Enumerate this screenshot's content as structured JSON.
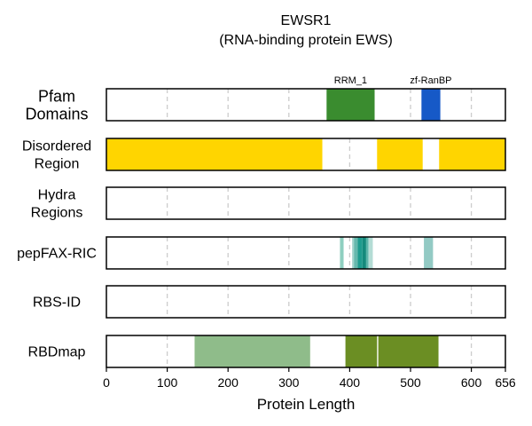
{
  "chart_data": {
    "type": "track",
    "title": "EWSR1",
    "subtitle": "(RNA-binding protein EWS)",
    "xlabel": "Protein Length",
    "xlim": [
      0,
      656
    ],
    "xticks": [
      0,
      100,
      200,
      300,
      400,
      500,
      600,
      656
    ],
    "grid_x": [
      100,
      200,
      300,
      400,
      500,
      600
    ],
    "grid": true,
    "tracks": [
      {
        "label_lines": [
          "Pfam",
          "Domains"
        ],
        "segments": [
          {
            "start": 362,
            "end": 441,
            "color": "#3a8c2f",
            "name": "RRM_1"
          },
          {
            "start": 518,
            "end": 549,
            "color": "#1659c7",
            "name": "zf-RanBP"
          }
        ]
      },
      {
        "label_lines": [
          "Disordered",
          "Region"
        ],
        "segments": [
          {
            "start": 0,
            "end": 355,
            "color": "#ffd500"
          },
          {
            "start": 445,
            "end": 520,
            "color": "#ffd500"
          },
          {
            "start": 547,
            "end": 656,
            "color": "#ffd500"
          }
        ]
      },
      {
        "label_lines": [
          "Hydra",
          "Regions"
        ],
        "segments": []
      },
      {
        "label_lines": [
          "pepFAX-RIC"
        ],
        "segments": [
          {
            "start": 384,
            "end": 390,
            "color": "#8fcfc0"
          },
          {
            "start": 404,
            "end": 407,
            "color": "#a0d3cb"
          },
          {
            "start": 407,
            "end": 413,
            "color": "#66b8ad"
          },
          {
            "start": 413,
            "end": 421,
            "color": "#1f9b8e"
          },
          {
            "start": 421,
            "end": 427,
            "color": "#148a7c"
          },
          {
            "start": 427,
            "end": 431,
            "color": "#5cb5a9"
          },
          {
            "start": 431,
            "end": 438,
            "color": "#b4dcd5"
          },
          {
            "start": 522,
            "end": 537,
            "color": "#93cac4"
          }
        ]
      },
      {
        "label_lines": [
          "RBS-ID"
        ],
        "segments": []
      },
      {
        "label_lines": [
          "RBDmap"
        ],
        "segments": [
          {
            "start": 145,
            "end": 335,
            "color": "#8fbc8a"
          },
          {
            "start": 393,
            "end": 445,
            "color": "#6b8e23"
          },
          {
            "start": 447,
            "end": 546,
            "color": "#6b8e23"
          }
        ]
      }
    ]
  }
}
